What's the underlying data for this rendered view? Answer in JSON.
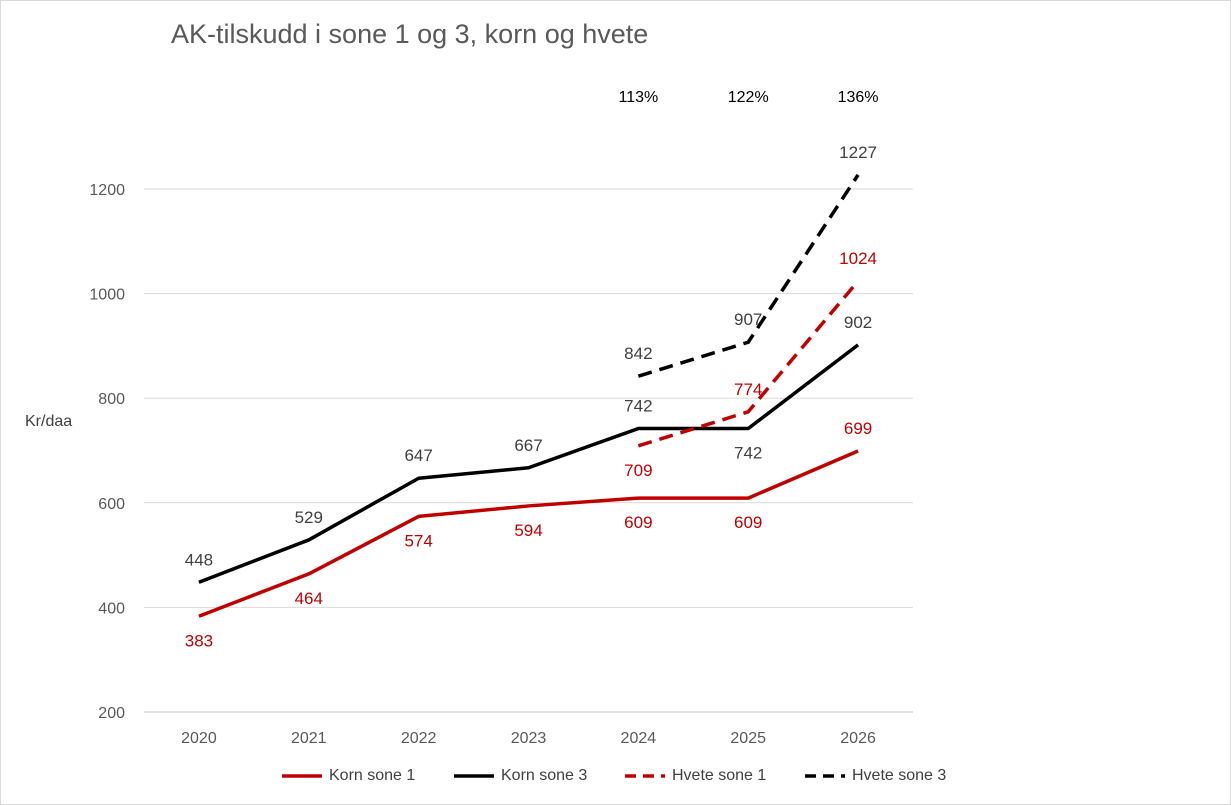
{
  "chart_data": {
    "type": "line",
    "title": "AK-tilskudd i sone 1 og 3, korn og hvete",
    "ylabel": "Kr/daa",
    "xlabel": "",
    "categories": [
      "2020",
      "2021",
      "2022",
      "2023",
      "2024",
      "2025",
      "2026"
    ],
    "ylim": [
      200,
      1200
    ],
    "yticks": [
      "200",
      "400",
      "600",
      "800",
      "1000",
      "1200"
    ],
    "grid": true,
    "legend_position": "bottom",
    "series": [
      {
        "name": "Korn sone 1",
        "color": "#c00000",
        "dash": "solid",
        "values": [
          383,
          464,
          574,
          594,
          609,
          609,
          699
        ],
        "labels": [
          "383",
          "464",
          "574",
          "594",
          "609",
          "609",
          "699"
        ],
        "label_pos": [
          "below",
          "below",
          "below",
          "below",
          "below",
          "below",
          "above"
        ]
      },
      {
        "name": "Korn sone 3",
        "color": "#000000",
        "dash": "solid",
        "values": [
          448,
          529,
          647,
          667,
          742,
          742,
          902
        ],
        "labels": [
          "448",
          "529",
          "647",
          "667",
          "742",
          "742",
          "902"
        ],
        "label_pos": [
          "above",
          "above",
          "above",
          "above",
          "above",
          "below",
          "above"
        ]
      },
      {
        "name": "Hvete sone 1",
        "color": "#c00000",
        "dash": "dashed",
        "values": [
          null,
          null,
          null,
          null,
          709,
          774,
          1024
        ],
        "labels": [
          null,
          null,
          null,
          null,
          "709",
          "774",
          "1024"
        ],
        "label_pos": [
          null,
          null,
          null,
          null,
          "below",
          "above",
          "above"
        ]
      },
      {
        "name": "Hvete sone 3",
        "color": "#000000",
        "dash": "dashed",
        "values": [
          null,
          null,
          null,
          null,
          842,
          907,
          1227
        ],
        "labels": [
          null,
          null,
          null,
          null,
          "842",
          "907",
          "1227"
        ],
        "label_pos": [
          null,
          null,
          null,
          null,
          "above",
          "above",
          "above"
        ]
      }
    ],
    "annotations": [
      {
        "category": "2024",
        "text": "113%"
      },
      {
        "category": "2025",
        "text": "122%"
      },
      {
        "category": "2026",
        "text": "136%"
      }
    ]
  }
}
